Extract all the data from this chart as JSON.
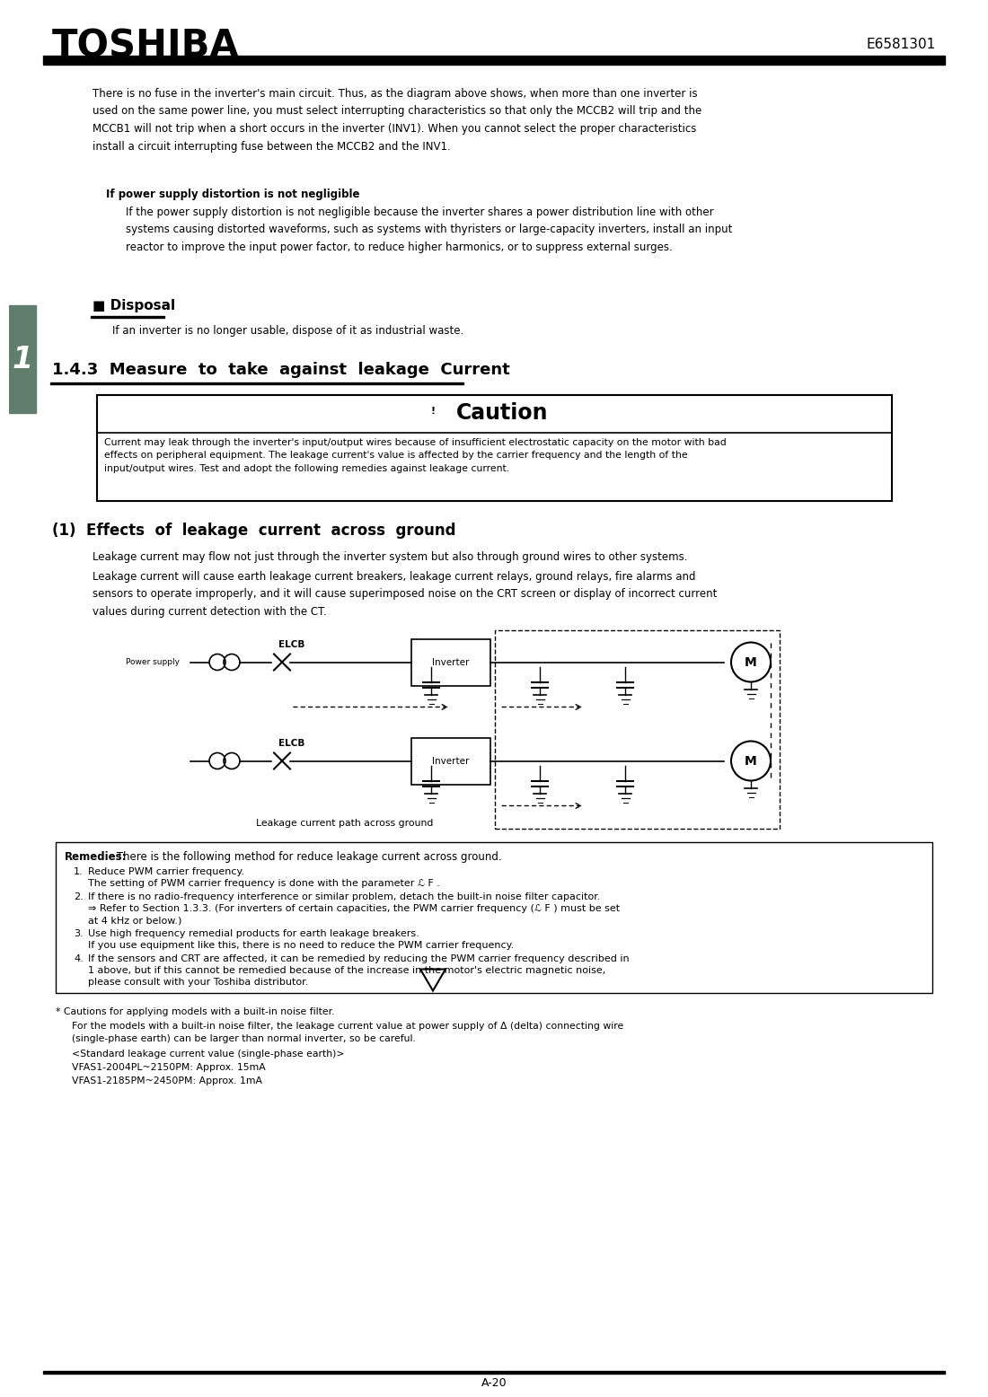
{
  "title_logo": "TOSHIBA",
  "doc_number": "E6581301",
  "page_number": "A-20",
  "bg_color": "#ffffff",
  "sidebar_color": "#607d6e",
  "sidebar_number": "1",
  "intro_text": "There is no fuse in the inverter's main circuit. Thus, as the diagram above shows, when more than one inverter is\nused on the same power line, you must select interrupting characteristics so that only the MCCB2 will trip and the\nMCCB1 will not trip when a short occurs in the inverter (INV1). When you cannot select the proper characteristics\ninstall a circuit interrupting fuse between the MCCB2 and the INV1.",
  "bold_heading": "If power supply distortion is not negligible",
  "indent_text1": "If the power supply distortion is not negligible because the inverter shares a power distribution line with other\nsystems causing distorted waveforms, such as systems with thyristers or large-capacity inverters, install an input\nreactor to improve the input power factor, to reduce higher harmonics, or to suppress external surges.",
  "disposal_heading": "■ Disposal",
  "disposal_text": "If an inverter is no longer usable, dispose of it as industrial waste.",
  "section_heading": "1.4.3  Measure  to  take  against  leakage  Current",
  "caution_heading": "Caution",
  "caution_body": "Current may leak through the inverter's input/output wires because of insufficient electrostatic capacity on the motor with bad\neffects on peripheral equipment. The leakage current's value is affected by the carrier frequency and the length of the\ninput/output wires. Test and adopt the following remedies against leakage current.",
  "effects_heading": "(1)  Effects  of  leakage  current  across  ground",
  "effects_text1": "Leakage current may flow not just through the inverter system but also through ground wires to other systems.",
  "effects_text2": "Leakage current will cause earth leakage current breakers, leakage current relays, ground relays, fire alarms and\nsensors to operate improperly, and it will cause superimposed noise on the CRT screen or display of incorrect current\nvalues during current detection with the CT.",
  "diagram_label_elcb1": "ELCB",
  "diagram_label_elcb2": "ELCB",
  "diagram_label_ps": "Power supply",
  "diagram_label_inv1": "Inverter",
  "diagram_label_inv2": "Inverter",
  "diagram_label_m1": "M",
  "diagram_label_m2": "M",
  "diagram_caption": "Leakage current path across ground",
  "remedies_label": "Remedies:",
  "remedies_intro": " There is the following method for reduce leakage current across ground.",
  "remedy1a": "Reduce PWM carrier frequency.",
  "remedy1b": "The setting of PWM carrier frequency is done with the parameter ℒ F .",
  "remedy2a": "If there is no radio-frequency interference or similar problem, detach the built-in noise filter capacitor.",
  "remedy2b": "⇒ Refer to Section 1.3.3. (For inverters of certain capacities, the PWM carrier frequency (ℒ F ) must be set",
  "remedy2c": "at 4 kHz or below.)",
  "remedy3a": "Use high frequency remedial products for earth leakage breakers.",
  "remedy3b": "If you use equipment like this, there is no need to reduce the PWM carrier frequency.",
  "remedy4a": "If the sensors and CRT are affected, it can be remedied by reducing the PWM carrier frequency described in",
  "remedy4b": "1 above, but if this cannot be remedied because of the increase in the motor's electric magnetic noise,",
  "remedy4c": "please consult with your Toshiba distributor.",
  "footnote1": "* Cautions for applying models with a built-in noise filter.",
  "footnote2a": "For the models with a built-in noise filter, the leakage current value at power supply of Δ (delta) connecting wire",
  "footnote2b": "(single-phase earth) can be larger than normal inverter, so be careful.",
  "footnote3": "<Standard leakage current value (single-phase earth)>",
  "footnote4": "VFAS1-2004PL~2150PM: Approx. 15mA",
  "footnote5": "VFAS1-2185PM~2450PM: Approx. 1mA"
}
